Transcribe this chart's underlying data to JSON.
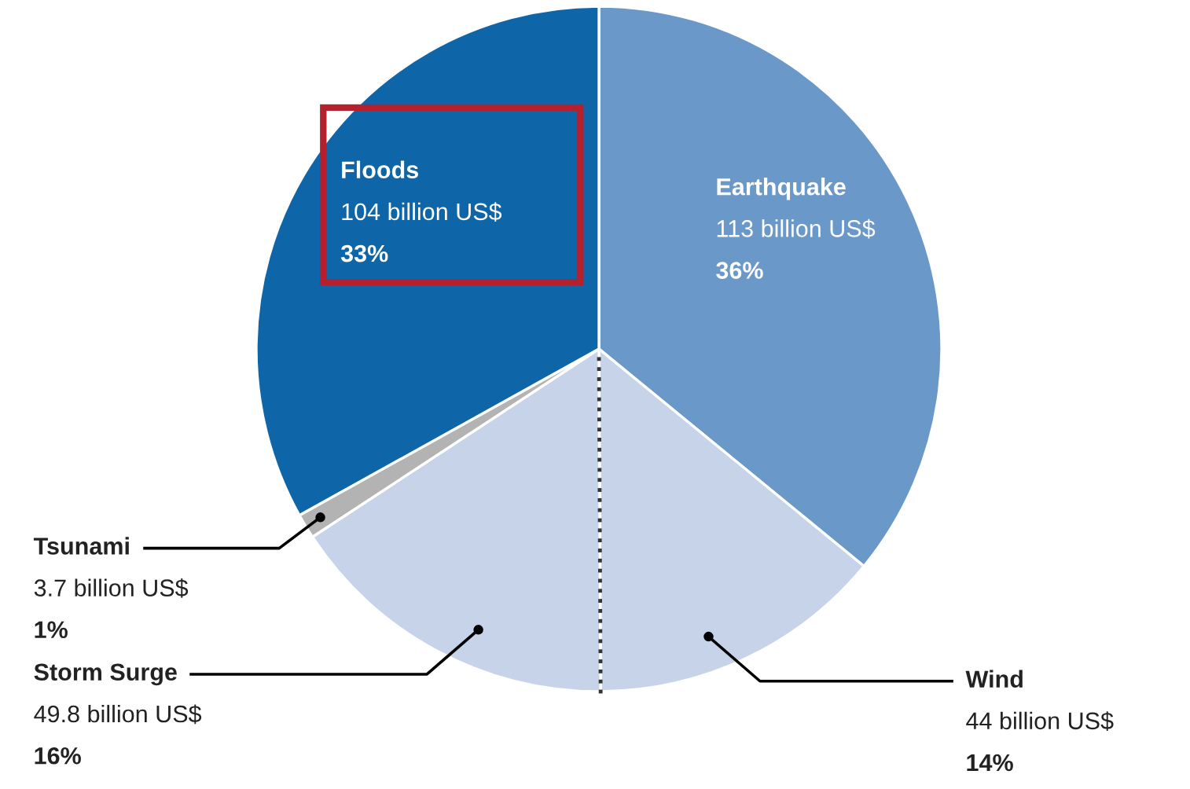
{
  "chart_data": {
    "type": "pie",
    "categories": [
      "Earthquake",
      "Wind",
      "Storm Surge",
      "Tsunami",
      "Floods"
    ],
    "values": [
      113,
      44,
      49.8,
      3.7,
      104
    ],
    "colors": [
      "#6a98c9",
      "#c6d3e9",
      "#c6d3e9",
      "#b3b3b3",
      "#0e66a8"
    ],
    "value_labels": [
      "113 billion US$",
      "44 billion US$",
      "49.8 billion US$",
      "3.7 billion US$",
      "104 billion US$"
    ],
    "annotations": [
      "36%",
      "14%",
      "16%",
      "1%",
      "33%"
    ]
  }
}
